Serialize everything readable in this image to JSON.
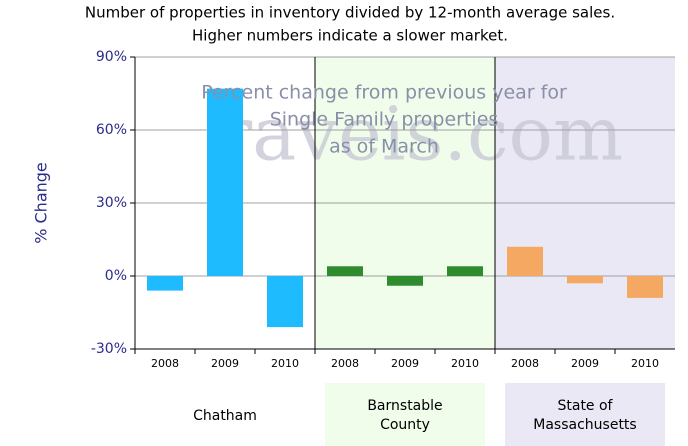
{
  "chart_data": {
    "type": "bar",
    "title": [
      "Number of properties in inventory divided by 12-month average sales.",
      "Higher numbers indicate a slower market."
    ],
    "annotation": [
      "Percent change from previous year for",
      "Single Family properties",
      "as of March"
    ],
    "watermark": "raveis.com",
    "y_label": "% Change",
    "ylim": [
      -30,
      90
    ],
    "yticks": [
      {
        "value": -30,
        "label": "-30%"
      },
      {
        "value": 0,
        "label": "0%"
      },
      {
        "value": 30,
        "label": "30%"
      },
      {
        "value": 60,
        "label": "60%"
      },
      {
        "value": 90,
        "label": "90%"
      }
    ],
    "grid": true,
    "groups": [
      {
        "name": "Chatham",
        "color": "#1ebcff",
        "background": "#ffffff",
        "categories": [
          "2008",
          "2009",
          "2010"
        ],
        "values": [
          -6,
          77,
          -21
        ]
      },
      {
        "name": "Barnstable County",
        "color": "#2e8b2e",
        "background": "#effdea",
        "categories": [
          "2008",
          "2009",
          "2010"
        ],
        "values": [
          4,
          -4,
          4
        ]
      },
      {
        "name": "State of Massachusetts",
        "color": "#f4a862",
        "background": "#e9e8f4",
        "categories": [
          "2008",
          "2009",
          "2010"
        ],
        "values": [
          12,
          -3,
          -9
        ]
      }
    ]
  }
}
